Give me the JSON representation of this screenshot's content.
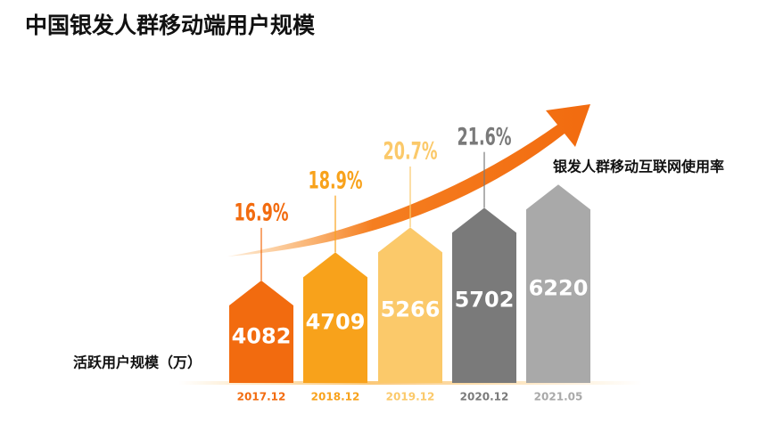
{
  "chart_data": {
    "type": "bar",
    "title": "中国银发人群移动端用户规模",
    "categories": [
      "2017.12",
      "2018.12",
      "2019.12",
      "2020.12",
      "2021.05"
    ],
    "colors": [
      "#f26b0f",
      "#f8a21b",
      "#fbc96a",
      "#7a7a7a",
      "#a9a9a9"
    ],
    "ylim": [
      1800,
      6800
    ],
    "y2lim": [
      10,
      25
    ],
    "series": [
      {
        "name": "活跃用户规模（万）",
        "values": [
          4082,
          4709,
          5266,
          5702,
          6220
        ]
      },
      {
        "name": "银发人群移动互联网使用率",
        "axis": "y2",
        "values": [
          16.9,
          18.9,
          20.7,
          21.6,
          null
        ],
        "value_labels": [
          "16.9%",
          "18.9%",
          "20.7%",
          "21.6%",
          null
        ]
      }
    ]
  }
}
